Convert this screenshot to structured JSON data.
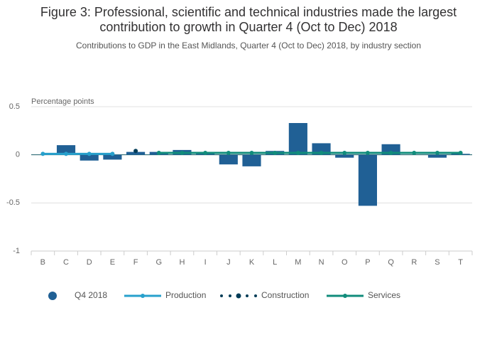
{
  "chart_data": {
    "type": "bar",
    "title": [
      "Figure 3: Professional, scientific and technical industries made the largest",
      "contribution to growth in Quarter 4 (Oct to Dec) 2018"
    ],
    "subtitle": "Contributions to GDP in the East Midlands, Quarter 4 (Oct to Dec) 2018, by industry section",
    "y_label": "Percentage points",
    "categories": [
      "B",
      "C",
      "D",
      "E",
      "F",
      "G",
      "H",
      "I",
      "J",
      "K",
      "L",
      "M",
      "N",
      "O",
      "P",
      "Q",
      "R",
      "S",
      "T"
    ],
    "series": [
      {
        "name": "Q4 2018",
        "color": "#206095",
        "kind": "bar",
        "values": [
          null,
          0.1,
          -0.06,
          -0.05,
          0.03,
          0.03,
          0.05,
          0.03,
          -0.1,
          -0.12,
          0.04,
          0.33,
          0.12,
          -0.03,
          -0.53,
          0.11,
          null,
          -0.03,
          0.01
        ]
      },
      {
        "name": "Production",
        "color": "#27a0cc",
        "kind": "line",
        "values": [
          0.01,
          0.01,
          0.01,
          0.01,
          null,
          null,
          null,
          null,
          null,
          null,
          null,
          null,
          null,
          null,
          null,
          null,
          null,
          null,
          null
        ]
      },
      {
        "name": "Construction",
        "color": "#003c57",
        "kind": "dotted",
        "values": [
          null,
          null,
          null,
          null,
          0.04,
          null,
          null,
          null,
          null,
          null,
          null,
          null,
          null,
          null,
          null,
          null,
          null,
          null,
          null
        ]
      },
      {
        "name": "Services",
        "color": "#118c7b",
        "kind": "line",
        "values": [
          null,
          null,
          null,
          null,
          null,
          0.02,
          0.02,
          0.02,
          0.02,
          0.02,
          0.02,
          0.02,
          0.02,
          0.02,
          0.02,
          0.02,
          0.02,
          0.02,
          0.02
        ]
      }
    ],
    "ylim": [
      -1,
      0.5
    ],
    "yticks": [
      0.5,
      0,
      -0.5,
      -1
    ],
    "grid": true,
    "legend": "bottom"
  }
}
